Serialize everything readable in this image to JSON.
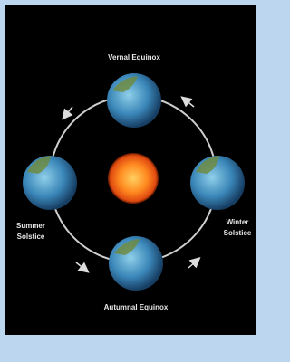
{
  "nodes": [
    {
      "lines": [
        "Vernal Equinox"
      ]
    },
    {
      "lines": [
        "Summer",
        "Solstice"
      ]
    },
    {
      "lines": [
        "Winter",
        "Solstice"
      ]
    },
    {
      "lines": [
        "Autumnal Equinox"
      ]
    }
  ]
}
